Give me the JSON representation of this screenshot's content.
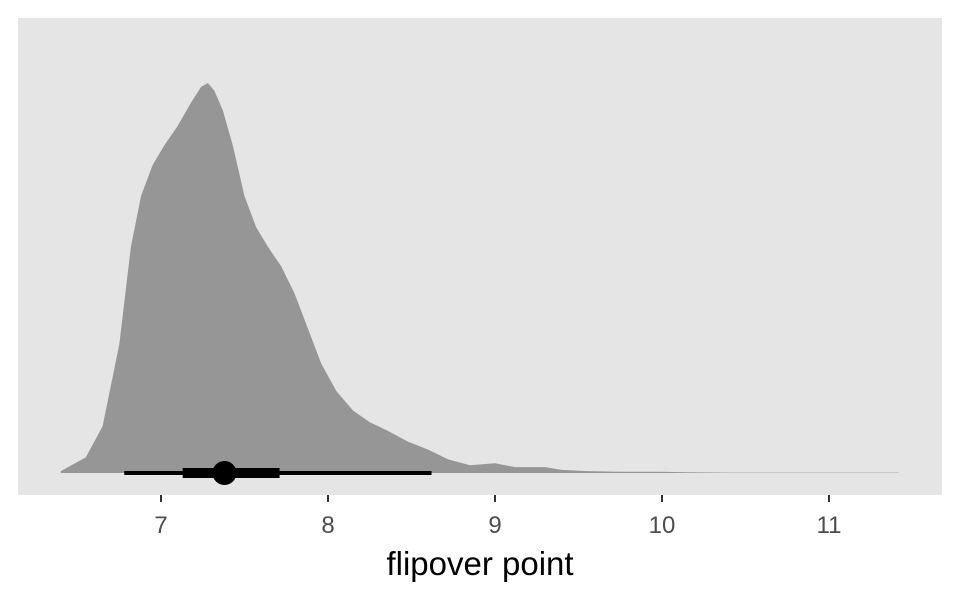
{
  "chart_data": {
    "type": "area",
    "title": "",
    "xlabel": "flipover point",
    "ylabel": "",
    "xlim": [
      6.35,
      11.5
    ],
    "ylim": [
      0,
      1.0
    ],
    "x_ticks": [
      7,
      8,
      9,
      10,
      11
    ],
    "x_tick_labels": [
      "7",
      "8",
      "9",
      "10",
      "11"
    ],
    "grid": false,
    "legend": "none",
    "density": {
      "x": [
        6.4,
        6.55,
        6.65,
        6.75,
        6.82,
        6.88,
        6.95,
        7.02,
        7.1,
        7.18,
        7.24,
        7.28,
        7.32,
        7.37,
        7.43,
        7.5,
        7.57,
        7.64,
        7.72,
        7.8,
        7.88,
        7.96,
        8.05,
        8.15,
        8.25,
        8.35,
        8.48,
        8.6,
        8.72,
        8.85,
        9.0,
        9.12,
        9.22,
        9.3,
        9.4,
        9.55,
        9.75,
        10.0,
        10.15,
        10.4,
        10.8,
        11.2,
        11.42
      ],
      "y": [
        0.005,
        0.04,
        0.12,
        0.33,
        0.58,
        0.71,
        0.79,
        0.84,
        0.89,
        0.95,
        0.99,
        1.0,
        0.98,
        0.93,
        0.84,
        0.71,
        0.63,
        0.58,
        0.53,
        0.46,
        0.37,
        0.28,
        0.21,
        0.16,
        0.13,
        0.11,
        0.08,
        0.06,
        0.035,
        0.02,
        0.025,
        0.015,
        0.015,
        0.015,
        0.008,
        0.005,
        0.003,
        0.003,
        0.002,
        0.001,
        0.001,
        0.001,
        0.001
      ]
    },
    "point_interval": {
      "point": 7.38,
      "inner_interval": [
        7.13,
        7.71
      ],
      "outer_interval": [
        6.78,
        8.62
      ]
    },
    "colors": {
      "panel_background": "#e5e5e5",
      "density_fill": "#969696",
      "interval": "#000000",
      "tick_label": "#4d4d4d",
      "axis_title": "#000000"
    }
  }
}
